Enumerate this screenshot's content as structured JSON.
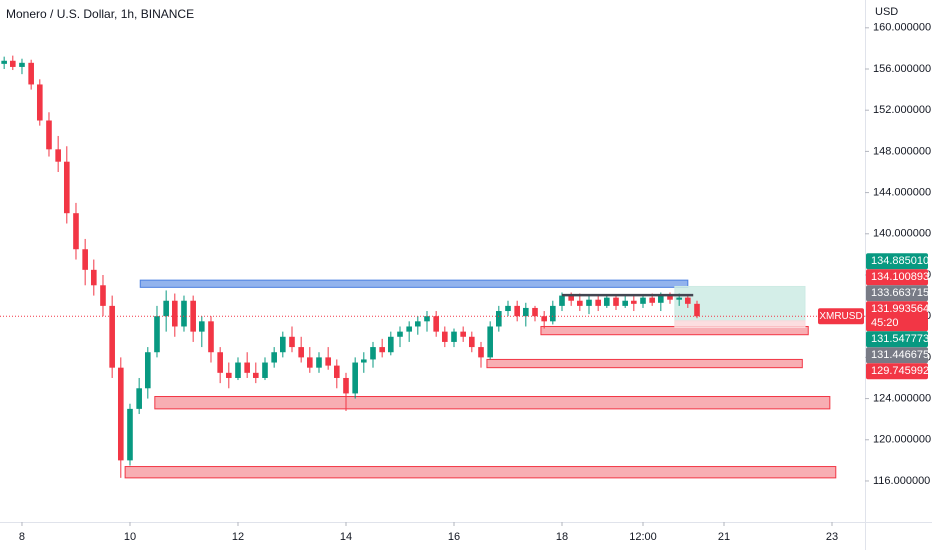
{
  "chart_data": {
    "type": "candlestick",
    "title": "Monero / U.S. Dollar, 1h, BINANCE",
    "currency": "USD",
    "up_color": "#089981",
    "down_color": "#f23645",
    "xlim": [
      7.593,
      23.611
    ],
    "ylim": [
      112.21,
      162.7
    ],
    "xticks": [
      8,
      10,
      12,
      14,
      16,
      18,
      {
        "value": 19.5,
        "label": "12:00"
      },
      21,
      23
    ],
    "yticks": [
      {
        "value": 116,
        "label": "116.000000"
      },
      {
        "value": 120,
        "label": "120.000000"
      },
      {
        "value": 124,
        "label": "124.000000"
      },
      {
        "value": 128,
        "label": "128.000000"
      },
      {
        "value": 132,
        "label": "132.000000"
      },
      {
        "value": 136,
        "label": "136.000000"
      },
      {
        "value": 140,
        "label": "140.000000"
      },
      {
        "value": 144,
        "label": "144.000000"
      },
      {
        "value": 148,
        "label": "148.000000"
      },
      {
        "value": 152,
        "label": "152.000000"
      },
      {
        "value": 156,
        "label": "156.000000"
      },
      {
        "value": 160,
        "label": "160.000000"
      }
    ],
    "x": [
      7.67,
      7.83,
      8.0,
      8.17,
      8.33,
      8.5,
      8.67,
      8.83,
      9.0,
      9.17,
      9.33,
      9.5,
      9.67,
      9.83,
      10.0,
      10.17,
      10.33,
      10.5,
      10.67,
      10.83,
      11.0,
      11.17,
      11.33,
      11.5,
      11.67,
      11.83,
      12.0,
      12.17,
      12.33,
      12.5,
      12.67,
      12.83,
      13.0,
      13.17,
      13.33,
      13.5,
      13.67,
      13.83,
      14.0,
      14.17,
      14.33,
      14.5,
      14.67,
      14.83,
      15.0,
      15.17,
      15.33,
      15.5,
      15.67,
      15.83,
      16.0,
      16.17,
      16.33,
      16.5,
      16.67,
      16.83,
      17.0,
      17.17,
      17.33,
      17.5,
      17.67,
      17.83,
      18.0,
      18.17,
      18.33,
      18.5,
      18.67,
      18.83,
      19.0,
      19.17,
      19.33,
      19.5,
      19.67,
      19.83,
      20.0,
      20.17,
      20.33,
      20.5
    ],
    "open": [
      156.5,
      156.8,
      156.2,
      156.6,
      154.5,
      151.0,
      148.2,
      147.0,
      142.0,
      138.5,
      136.5,
      135.0,
      133.0,
      127.0,
      118.0,
      123.0,
      125.0,
      128.5,
      132.0,
      133.5,
      131.0,
      133.5,
      130.5,
      131.5,
      128.5,
      126.5,
      126.0,
      127.5,
      126.5,
      126.0,
      127.5,
      128.5,
      130.0,
      129.0,
      128.0,
      127.0,
      128.0,
      127.2,
      126.0,
      124.5,
      127.5,
      127.8,
      129.0,
      128.5,
      130.0,
      130.5,
      131.0,
      131.5,
      132.0,
      130.5,
      129.5,
      130.5,
      130.0,
      129.0,
      128.0,
      131.0,
      132.5,
      133.0,
      132.0,
      132.8,
      132.0,
      131.5,
      133.0,
      134.0,
      133.5,
      133.0,
      133.6,
      133.0,
      133.8,
      133.0,
      133.5,
      133.2,
      133.8,
      133.3,
      134.0,
      133.6,
      133.8,
      133.2
    ],
    "high": [
      157.2,
      157.3,
      157.0,
      156.9,
      155.0,
      151.8,
      149.5,
      148.5,
      143.0,
      139.5,
      137.5,
      136.0,
      134.0,
      128.0,
      123.5,
      126.0,
      129.0,
      133.0,
      134.5,
      134.2,
      134.0,
      134.0,
      132.0,
      132.0,
      129.0,
      127.5,
      128.0,
      128.5,
      127.5,
      128.0,
      129.0,
      130.5,
      131.0,
      130.0,
      129.0,
      128.5,
      129.0,
      127.8,
      126.5,
      128.0,
      128.5,
      129.5,
      129.8,
      130.5,
      131.0,
      131.5,
      132.0,
      132.5,
      132.5,
      131.0,
      130.8,
      131.0,
      130.5,
      129.5,
      131.5,
      133.0,
      133.5,
      133.5,
      133.3,
      133.0,
      132.5,
      133.5,
      134.3,
      134.3,
      134.2,
      134.0,
      134.0,
      134.0,
      134.0,
      134.0,
      134.0,
      134.1,
      134.2,
      134.3,
      134.3,
      134.2,
      134.0,
      133.5
    ],
    "low": [
      156.0,
      155.9,
      155.5,
      154.0,
      150.5,
      147.5,
      146.0,
      141.0,
      137.5,
      135.0,
      134.0,
      132.0,
      126.0,
      116.3,
      117.5,
      122.5,
      124.0,
      128.0,
      130.5,
      130.0,
      130.5,
      129.5,
      129.0,
      127.5,
      125.5,
      125.0,
      125.8,
      126.0,
      125.5,
      125.8,
      127.0,
      128.0,
      128.5,
      127.5,
      126.5,
      126.5,
      126.8,
      125.0,
      122.8,
      124.0,
      126.5,
      127.0,
      128.0,
      128.2,
      129.0,
      129.5,
      130.2,
      130.5,
      130.0,
      129.0,
      129.0,
      129.5,
      128.5,
      127.0,
      127.8,
      130.5,
      132.0,
      131.5,
      131.0,
      131.5,
      130.8,
      131.2,
      132.5,
      133.0,
      132.5,
      132.2,
      132.5,
      132.8,
      132.6,
      132.8,
      132.5,
      132.8,
      133.0,
      132.5,
      133.2,
      133.0,
      132.8,
      131.8
    ],
    "close": [
      156.8,
      156.2,
      156.6,
      154.5,
      151.0,
      148.2,
      147.0,
      142.0,
      138.5,
      136.5,
      135.0,
      133.0,
      127.0,
      118.0,
      123.0,
      125.0,
      128.5,
      132.0,
      133.5,
      131.0,
      133.5,
      130.5,
      131.5,
      128.5,
      126.5,
      126.0,
      127.5,
      126.5,
      126.0,
      127.5,
      128.5,
      130.0,
      129.0,
      128.0,
      127.0,
      128.0,
      127.2,
      126.0,
      124.5,
      127.5,
      127.8,
      129.0,
      128.5,
      130.0,
      130.5,
      131.0,
      131.5,
      132.0,
      130.5,
      129.5,
      130.5,
      130.0,
      129.0,
      128.0,
      131.0,
      132.5,
      133.0,
      132.0,
      132.8,
      132.0,
      131.5,
      133.0,
      134.0,
      133.5,
      133.0,
      133.6,
      133.0,
      133.8,
      133.0,
      133.5,
      133.2,
      133.8,
      133.3,
      134.0,
      133.6,
      133.8,
      133.2,
      131.993564
    ],
    "zones": [
      {
        "x": [
          10.19,
          20.33
        ],
        "y": [
          134.8,
          135.5
        ],
        "color": "#7fa6ea",
        "border": "#4a7fe0"
      },
      {
        "x": [
          9.91,
          23.07
        ],
        "y": [
          116.3,
          117.4
        ],
        "color": "#f7a0a6",
        "border": "#f23645"
      },
      {
        "x": [
          10.46,
          22.96
        ],
        "y": [
          123.0,
          124.2
        ],
        "color": "#f7a0a6",
        "border": "#f23645"
      },
      {
        "x": [
          16.61,
          22.45
        ],
        "y": [
          127.0,
          127.8
        ],
        "color": "#f7a0a6",
        "border": "#f23645"
      },
      {
        "x": [
          17.61,
          22.56
        ],
        "y": [
          130.2,
          131.0
        ],
        "color": "#f7a0a6",
        "border": "#f23645"
      },
      {
        "x": [
          20.09,
          22.5
        ],
        "y": [
          131.55,
          134.885
        ],
        "color": "#cdebe4",
        "border": "#cdebe4"
      },
      {
        "x": [
          20.09,
          22.5
        ],
        "y": [
          130.9,
          131.55
        ],
        "color": "#fbd8db",
        "border": "#fbd8db"
      }
    ],
    "trend_line": {
      "x": [
        18.0,
        20.43
      ],
      "y": [
        134.05,
        134.05
      ],
      "color": "#434651"
    },
    "price_tags": [
      {
        "value": 134.88501,
        "label": "134.885010",
        "color": "#089981"
      },
      {
        "value": 134.100893,
        "label": "134.100893",
        "color": "#f23645"
      },
      {
        "value": 133.663715,
        "label": "133.663715",
        "color": "#787b86"
      },
      {
        "value": 131.547773,
        "label": "131.547773",
        "color": "#089981"
      },
      {
        "value": 131.446675,
        "label": "131.446675",
        "color": "#787b86"
      },
      {
        "value": 129.745992,
        "label": "129.745992",
        "color": "#f23645"
      }
    ],
    "last_price": {
      "value": 131.993564,
      "label": "131.993564",
      "symbol": "XMRUSD",
      "countdown": "45:20",
      "color": "#f23645"
    }
  }
}
